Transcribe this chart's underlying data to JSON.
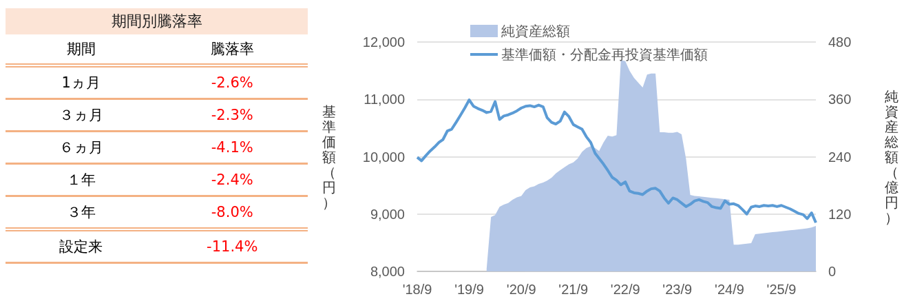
{
  "chart_data": [
    {
      "type": "other",
      "title": "期間別騰落率",
      "annotations": [
        "期間",
        "騰落率",
        "1ヵ月",
        "-2.6%",
        "３ヵ月",
        "-2.3%",
        "６ヵ月",
        "-4.1%",
        "１年",
        "-2.4%",
        "３年",
        "-8.0%",
        "設定来",
        "-11.4%"
      ]
    },
    {
      "type": "line",
      "ylabel": "基準価額（円）",
      "y2label": "純資産総額（億円）",
      "legend": "top",
      "grid": "y",
      "x": [
        "2018-09",
        "2018-10",
        "2018-11",
        "2018-12",
        "2019-01",
        "2019-02",
        "2019-03",
        "2019-04",
        "2019-05",
        "2019-06",
        "2019-07",
        "2019-08",
        "2019-09",
        "2019-10",
        "2019-11",
        "2019-12",
        "2020-01",
        "2020-02",
        "2020-03",
        "2020-04",
        "2020-05",
        "2020-06",
        "2020-07",
        "2020-08",
        "2020-09",
        "2020-10",
        "2020-11",
        "2020-12",
        "2021-01",
        "2021-02",
        "2021-03",
        "2021-04",
        "2021-05",
        "2021-06",
        "2021-07",
        "2021-08",
        "2021-09",
        "2021-10",
        "2021-11",
        "2021-12",
        "2022-01",
        "2022-02",
        "2022-03",
        "2022-04",
        "2022-05",
        "2022-06",
        "2022-07",
        "2022-08",
        "2022-09",
        "2022-10",
        "2022-11",
        "2022-12",
        "2023-01",
        "2023-02",
        "2023-03",
        "2023-04",
        "2023-05",
        "2023-06",
        "2023-07",
        "2023-08",
        "2023-09",
        "2023-10",
        "2023-11",
        "2023-12",
        "2024-01",
        "2024-02",
        "2024-03",
        "2024-04",
        "2024-05",
        "2024-06",
        "2024-07",
        "2024-08",
        "2024-09",
        "2024-10",
        "2024-11",
        "2024-12",
        "2025-01",
        "2025-02",
        "2025-03",
        "2025-04",
        "2025-05",
        "2025-06",
        "2025-07",
        "2025-08",
        "2025-09",
        "2025-10",
        "2025-11",
        "2025-12",
        "2026-01",
        "2026-02",
        "2026-03",
        "2026-04",
        "2026-05"
      ],
      "xlim": [
        "2018-09",
        "2026-05"
      ],
      "xticks": [
        {
          "value": "2018-09",
          "label": "'18/9"
        },
        {
          "value": "2019-09",
          "label": "'19/9"
        },
        {
          "value": "2020-09",
          "label": "'20/9"
        },
        {
          "value": "2021-09",
          "label": "'21/9"
        },
        {
          "value": "2022-09",
          "label": "'22/9"
        },
        {
          "value": "2023-09",
          "label": "'23/9"
        },
        {
          "value": "2024-09",
          "label": "'24/9"
        },
        {
          "value": "2025-09",
          "label": "'25/9"
        }
      ],
      "ylim": [
        8000,
        12000
      ],
      "yticks": [
        {
          "value": 8000,
          "label": "8,000"
        },
        {
          "value": 9000,
          "label": "9,000"
        },
        {
          "value": 10000,
          "label": "10,000"
        },
        {
          "value": 11000,
          "label": "11,000"
        },
        {
          "value": 12000,
          "label": "12,000"
        }
      ],
      "y2lim": [
        0,
        480
      ],
      "y2ticks": [
        0,
        120,
        240,
        360,
        480
      ],
      "series": [
        {
          "name": "純資産総額",
          "type": "area",
          "axis": "y2",
          "color": "#b4c7e7",
          "values": [
            null,
            null,
            null,
            null,
            null,
            null,
            null,
            null,
            null,
            null,
            null,
            null,
            null,
            null,
            null,
            null,
            5,
            114,
            118,
            135,
            140,
            143,
            150,
            155,
            158,
            170,
            176,
            178,
            183,
            186,
            190,
            196,
            205,
            212,
            218,
            224,
            228,
            236,
            250,
            258,
            262,
            258,
            252,
            270,
            284,
            282,
            285,
            442,
            440,
            420,
            405,
            395,
            385,
            412,
            414,
            414,
            291,
            291,
            290,
            290,
            292,
            287,
            236,
            160,
            158,
            157,
            156,
            155,
            154,
            153,
            152,
            151,
            150,
            56,
            56,
            57,
            58,
            59,
            78,
            79,
            80,
            81,
            82,
            83,
            84,
            85,
            86,
            87,
            88,
            89,
            90,
            92,
            95
          ]
        },
        {
          "name": "基準価額・分配金再投資基準価額",
          "type": "line",
          "color": "#5b9bd5",
          "values": [
            9990,
            9930,
            10020,
            10100,
            10170,
            10250,
            10300,
            10450,
            10480,
            10600,
            10720,
            10850,
            10990,
            10880,
            10840,
            10810,
            10770,
            10790,
            10960,
            10650,
            10710,
            10730,
            10760,
            10800,
            10850,
            10880,
            10890,
            10870,
            10900,
            10870,
            10680,
            10600,
            10570,
            10620,
            10780,
            10700,
            10560,
            10520,
            10480,
            10350,
            10250,
            10060,
            9970,
            9870,
            9760,
            9640,
            9590,
            9510,
            9560,
            9400,
            9370,
            9360,
            9340,
            9400,
            9440,
            9450,
            9400,
            9280,
            9190,
            9280,
            9250,
            9190,
            9130,
            9170,
            9230,
            9250,
            9220,
            9200,
            9130,
            9110,
            9100,
            9230,
            9170,
            9180,
            9150,
            9080,
            9000,
            9120,
            9140,
            9130,
            9150,
            9140,
            9150,
            9130,
            9150,
            9120,
            9090,
            9050,
            9010,
            8990,
            8920,
            9020,
            8850
          ]
        }
      ]
    }
  ]
}
